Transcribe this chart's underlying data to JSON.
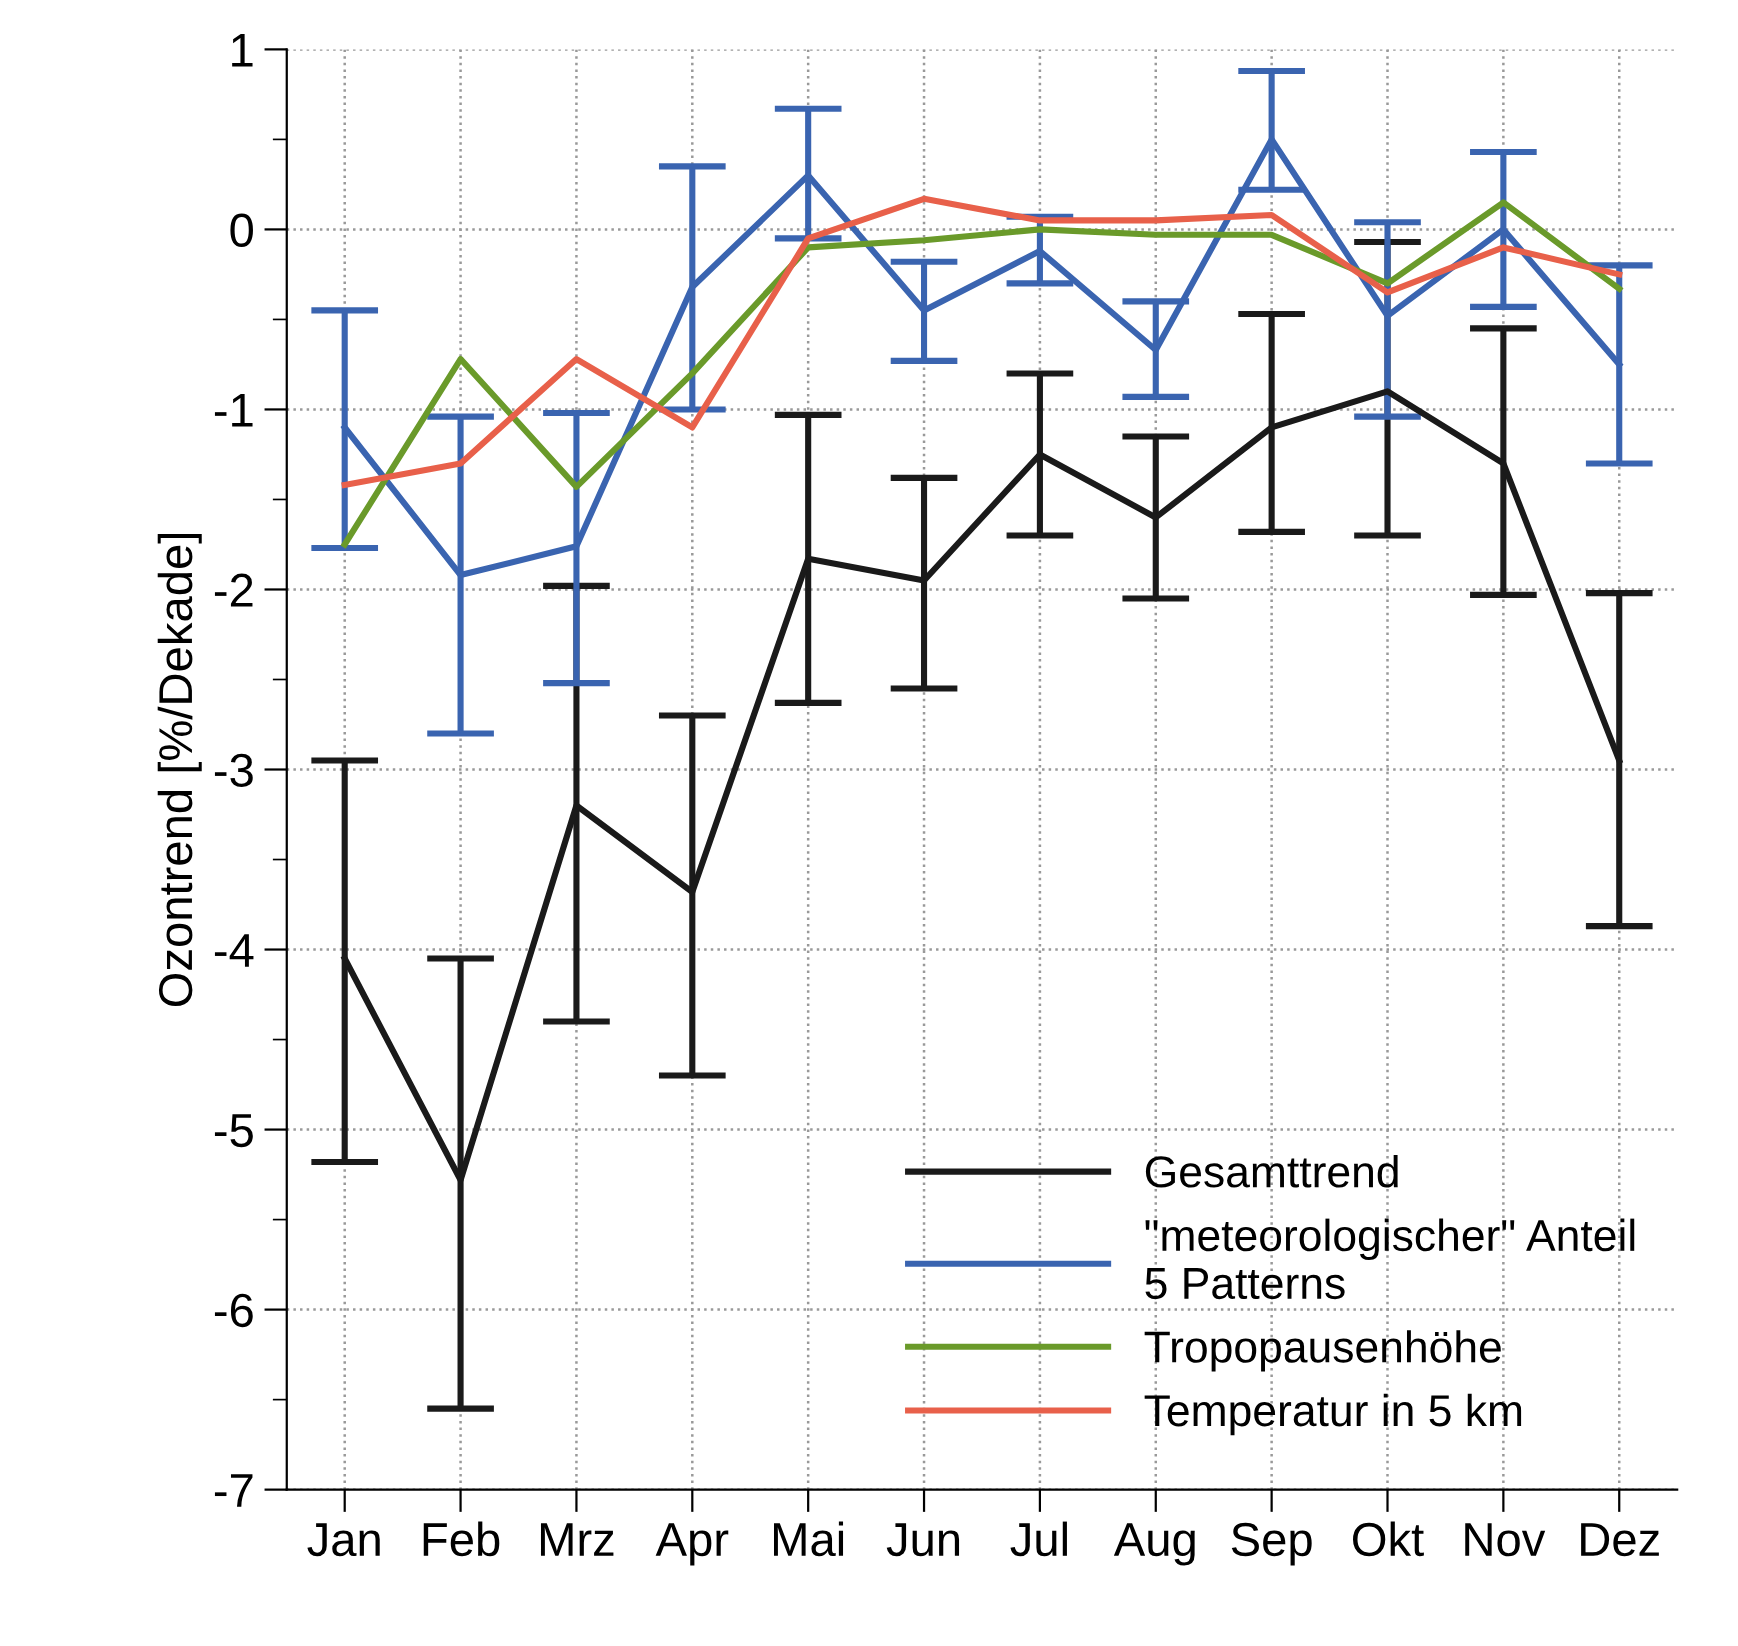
{
  "chart_data": {
    "type": "line",
    "ylabel": "Ozontrend [%/Dekade]",
    "categories": [
      "Jan",
      "Feb",
      "Mrz",
      "Apr",
      "Mai",
      "Jun",
      "Jul",
      "Aug",
      "Sep",
      "Okt",
      "Nov",
      "Dez"
    ],
    "ylim": [
      -7,
      1
    ],
    "yticks": [
      -7,
      -6,
      -5,
      -4,
      -3,
      -2,
      -1,
      0,
      1
    ],
    "grid": true,
    "legend": "bottom right",
    "line_style": "solid",
    "marker": "none",
    "series": [
      {
        "name": "Gesamttrend",
        "color": "#1a1a1a",
        "values": [
          -4.05,
          -5.28,
          -3.2,
          -3.68,
          -1.83,
          -1.95,
          -1.25,
          -1.6,
          -1.1,
          -0.9,
          -1.3,
          -2.95
        ],
        "errors": [
          [
            -5.18,
            -2.95
          ],
          [
            -6.55,
            -4.05
          ],
          [
            -4.4,
            -1.98
          ],
          [
            -4.7,
            -2.7
          ],
          [
            -2.63,
            -1.03
          ],
          [
            -2.55,
            -1.38
          ],
          [
            -1.7,
            -0.8
          ],
          [
            -2.05,
            -1.15
          ],
          [
            -1.68,
            -0.47
          ],
          [
            -1.7,
            -0.07
          ],
          [
            -2.03,
            -0.55
          ],
          [
            -3.87,
            -2.02
          ]
        ]
      },
      {
        "name": "\"meteorologischer\" Anteil\n5 Patterns",
        "color": "#3a64b0",
        "values": [
          -1.1,
          -1.92,
          -1.76,
          -0.32,
          0.3,
          -0.45,
          -0.12,
          -0.67,
          0.5,
          -0.48,
          0.0,
          -0.75
        ],
        "errors": [
          [
            -1.77,
            -0.45
          ],
          [
            -2.8,
            -1.04
          ],
          [
            -2.52,
            -1.02
          ],
          [
            -1.0,
            0.35
          ],
          [
            -0.05,
            0.67
          ],
          [
            -0.73,
            -0.18
          ],
          [
            -0.3,
            0.07
          ],
          [
            -0.93,
            -0.4
          ],
          [
            0.22,
            0.88
          ],
          [
            -1.04,
            0.04
          ],
          [
            -0.43,
            0.43
          ],
          [
            -1.3,
            -0.2
          ]
        ]
      },
      {
        "name": "Tropopausenhöhe",
        "color": "#6a9a2a",
        "values": [
          -1.75,
          -0.72,
          -1.43,
          -0.8,
          -0.1,
          -0.06,
          0.0,
          -0.03,
          -0.03,
          -0.3,
          0.15,
          -0.33
        ]
      },
      {
        "name": "Temperatur in 5 km",
        "color": "#e8604a",
        "values": [
          -1.42,
          -1.3,
          -0.72,
          -1.1,
          -0.05,
          0.17,
          0.05,
          0.05,
          0.08,
          -0.35,
          -0.1,
          -0.25
        ]
      }
    ]
  }
}
